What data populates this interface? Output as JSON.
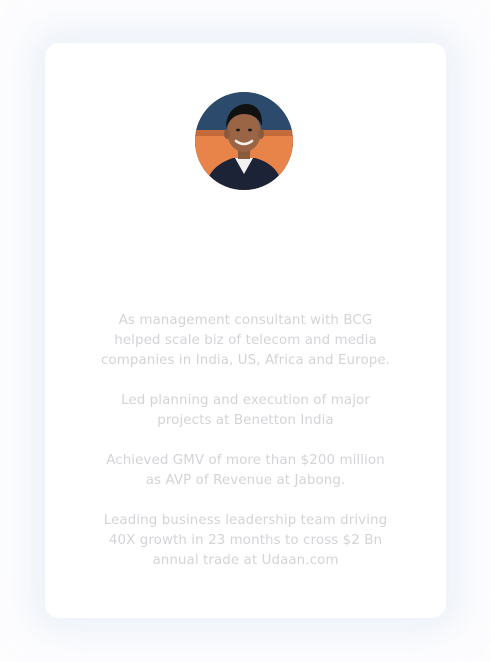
{
  "profile": {
    "avatar_icon": "person-portrait-icon",
    "bio": [
      "As management consultant with BCG\nhelped scale biz of telecom and media\ncompanies in India, US, Africa and Europe.",
      "Led planning and execution of major\nprojects at Benetton India",
      "Achieved GMV of more than $200 million\nas AVP of Revenue at Jabong.",
      "Leading business leadership team driving\n40X growth in 23 months to cross $2 Bn\nannual trade at Udaan.com"
    ]
  },
  "colors": {
    "card_background": "#ffffff",
    "text_muted": "#d4d4d8",
    "card_shadow": "#dee8f6"
  }
}
